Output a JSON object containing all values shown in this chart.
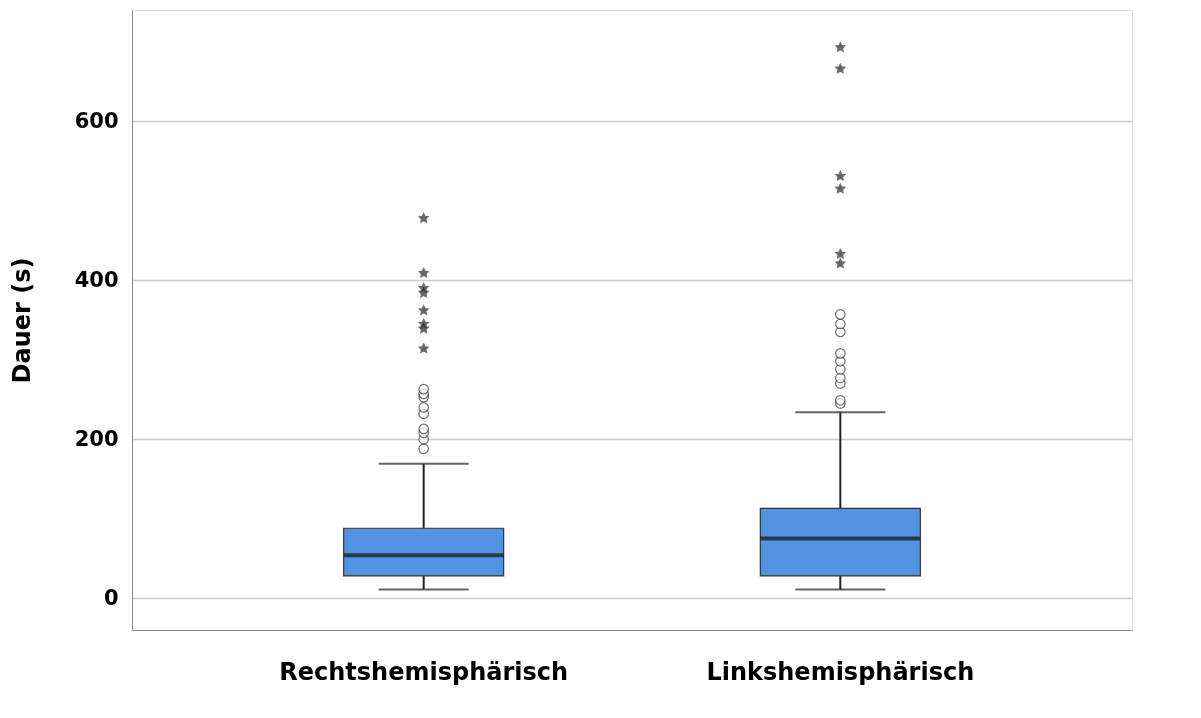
{
  "chart_data": {
    "type": "box",
    "ylabel": "Dauer (s)",
    "categories": [
      "Rechtshemisphärisch",
      "Linkshemisphärisch"
    ],
    "boxes": [
      {
        "low": 11,
        "q1": 28,
        "median": 54,
        "q3": 88,
        "high": 169,
        "outliers": [
          188,
          200,
          208,
          213,
          232,
          240,
          253,
          257,
          263,
          314,
          339,
          345,
          362,
          384,
          390,
          409,
          478
        ]
      },
      {
        "low": 11,
        "q1": 28,
        "median": 75,
        "q3": 113,
        "high": 234,
        "outliers": [
          245,
          249,
          270,
          277,
          288,
          298,
          308,
          335,
          345,
          357,
          421,
          433,
          515,
          531,
          666,
          693
        ]
      }
    ],
    "color": "#5294e2",
    "ylim": [
      -40,
      740
    ],
    "yticks": [
      0,
      200,
      400,
      600
    ],
    "grid": "y"
  }
}
